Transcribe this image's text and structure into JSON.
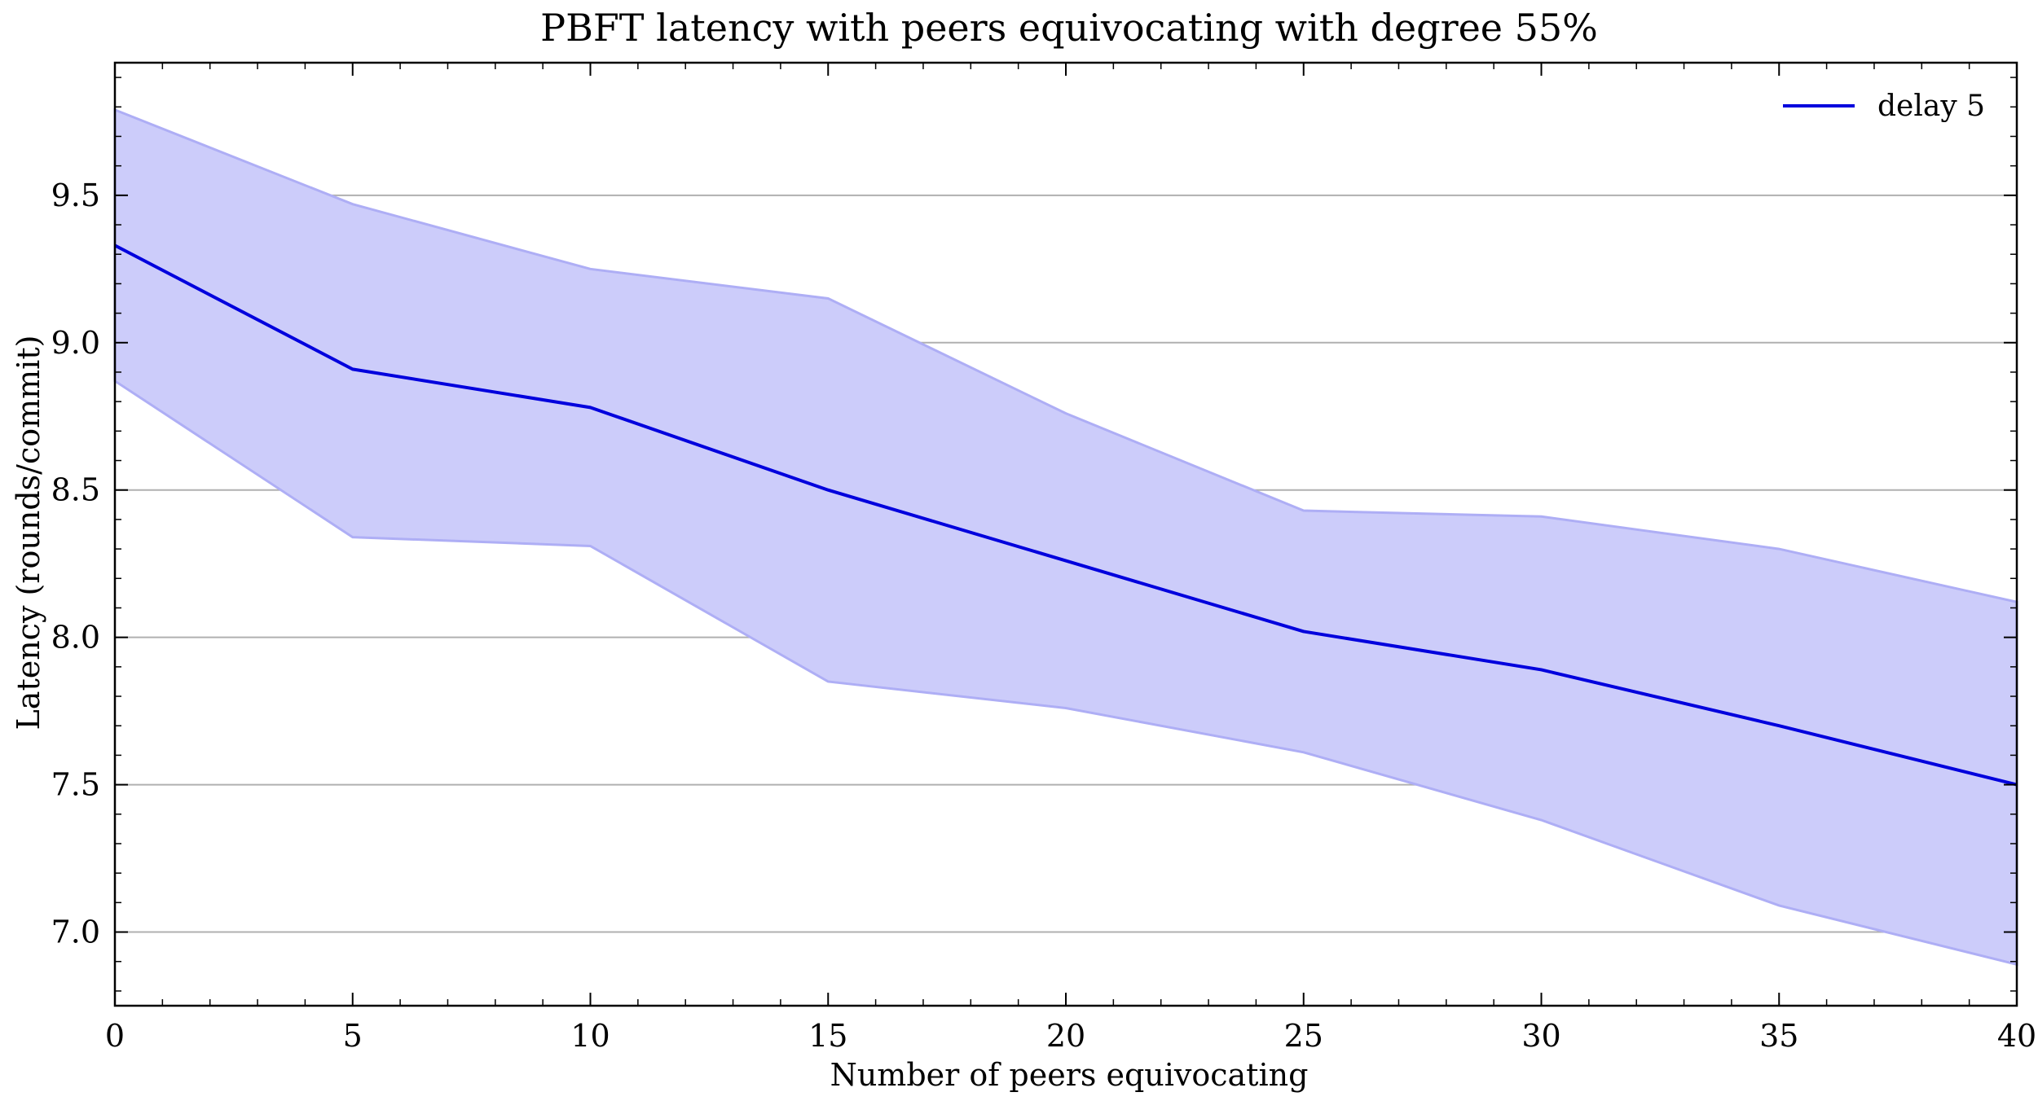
{
  "chart_data": {
    "type": "line",
    "title": "PBFT latency with peers equivocating with degree 55%",
    "xlabel": "Number of peers equivocating",
    "ylabel": "Latency (rounds/commit)",
    "xlim": [
      0,
      40
    ],
    "ylim": [
      6.75,
      9.95
    ],
    "xticks": [
      0,
      5,
      10,
      15,
      20,
      25,
      30,
      35,
      40
    ],
    "xtick_labels": [
      "0",
      "5",
      "10",
      "15",
      "20",
      "25",
      "30",
      "35",
      "40"
    ],
    "yticks": [
      7.0,
      7.5,
      8.0,
      8.5,
      9.0,
      9.5
    ],
    "ytick_labels": [
      "7.0",
      "7.5",
      "8.0",
      "8.5",
      "9.0",
      "9.5"
    ],
    "grid": "horizontal",
    "legend_position": "top-right",
    "series": [
      {
        "name": "delay 5",
        "color": "#0000dd",
        "band_color": "#ccccfa",
        "band_edge_color": "#aeaef5",
        "x": [
          0,
          5,
          10,
          15,
          20,
          25,
          30,
          35,
          40
        ],
        "y": [
          9.33,
          8.91,
          8.78,
          8.5,
          8.26,
          8.02,
          7.89,
          7.7,
          7.5
        ],
        "upper": [
          9.79,
          9.47,
          9.25,
          9.15,
          8.76,
          8.43,
          8.41,
          8.3,
          8.12
        ],
        "lower": [
          8.87,
          8.34,
          8.31,
          7.85,
          7.76,
          7.61,
          7.38,
          7.09,
          6.89
        ]
      }
    ]
  }
}
